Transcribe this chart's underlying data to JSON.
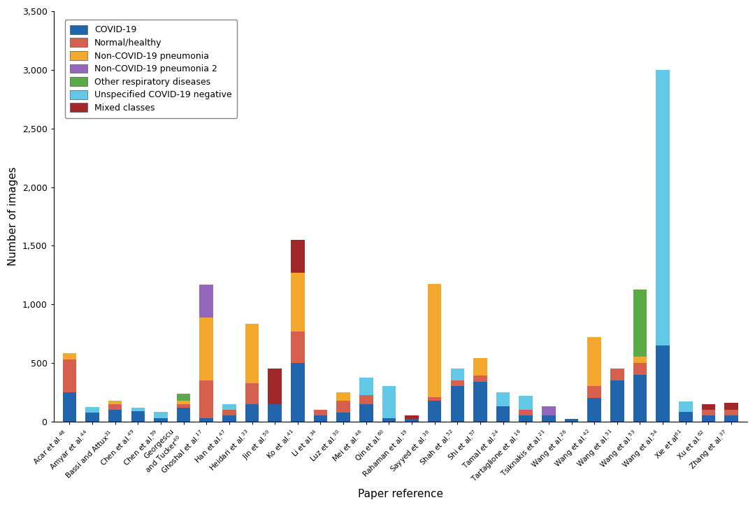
{
  "labels_base": [
    "Acar et al.",
    "Amyar et al.",
    "Bassi and Attux",
    "Chen et al.",
    "Chen et al.",
    "Georgescu\n and Tucker",
    "Ghoshal et al.",
    "Han et al.",
    "Heidari et al.",
    "Jin et al.",
    "Ko et al.",
    "Li et al.",
    "Luz et al.",
    "Mei et al.",
    "Qin et al.",
    "Rahaman et al.",
    "Sayyed et al.",
    "Shah et al.",
    "Shi et al.",
    "Tamal et al.",
    "Tartaglione et al.",
    "Tsiknakis et al.",
    "Wang et al.",
    "Wang et al.",
    "Wang et al.",
    "Wang et al.",
    "Wang et al.",
    "Xie et al",
    "Xu et al.",
    "Zhang et al."
  ],
  "labels_superscript": [
    "48",
    "44",
    "31",
    "49",
    "59",
    "40",
    "17",
    "47",
    "33",
    "50",
    "41",
    "34",
    "30",
    "46",
    "60",
    "19",
    "36",
    "52",
    "57",
    "24",
    "16",
    "21",
    "26",
    "42",
    "51",
    "53",
    "54",
    "61",
    "62",
    "37"
  ],
  "covid19": [
    251,
    75,
    100,
    90,
    30,
    120,
    30,
    50,
    150,
    150,
    500,
    50,
    75,
    150,
    30,
    25,
    180,
    300,
    340,
    130,
    50,
    50,
    25,
    200,
    350,
    400,
    650,
    80,
    50,
    50
  ],
  "normal_healthy": [
    280,
    0,
    50,
    0,
    0,
    30,
    320,
    50,
    175,
    0,
    270,
    50,
    100,
    75,
    0,
    0,
    25,
    50,
    50,
    0,
    50,
    0,
    0,
    100,
    100,
    100,
    0,
    0,
    50,
    50
  ],
  "non_covid_pneu": [
    50,
    0,
    30,
    0,
    0,
    30,
    540,
    0,
    510,
    0,
    500,
    0,
    75,
    0,
    0,
    0,
    970,
    0,
    150,
    0,
    0,
    0,
    0,
    420,
    0,
    55,
    0,
    0,
    0,
    0
  ],
  "non_covid_pneu2": [
    0,
    0,
    0,
    0,
    0,
    0,
    280,
    0,
    0,
    0,
    0,
    0,
    0,
    0,
    0,
    0,
    0,
    0,
    0,
    0,
    0,
    80,
    0,
    0,
    0,
    0,
    0,
    0,
    0,
    0
  ],
  "other_resp": [
    0,
    0,
    0,
    0,
    0,
    60,
    0,
    0,
    0,
    0,
    0,
    0,
    0,
    0,
    0,
    0,
    0,
    0,
    0,
    0,
    0,
    0,
    0,
    0,
    0,
    570,
    0,
    0,
    0,
    0
  ],
  "unspec_neg": [
    0,
    50,
    0,
    30,
    50,
    0,
    0,
    50,
    0,
    0,
    0,
    0,
    0,
    150,
    270,
    0,
    0,
    100,
    0,
    120,
    120,
    0,
    0,
    0,
    0,
    0,
    2350,
    90,
    0,
    0
  ],
  "mixed": [
    0,
    0,
    0,
    0,
    0,
    0,
    0,
    0,
    0,
    300,
    280,
    0,
    0,
    0,
    0,
    30,
    0,
    0,
    0,
    0,
    0,
    0,
    0,
    0,
    0,
    0,
    0,
    0,
    50,
    60
  ],
  "colors": {
    "covid19": "#2166ac",
    "normal_healthy": "#d6604d",
    "non_covid_pneu": "#f4a82e",
    "non_covid_pneu2": "#9467bd",
    "other_resp": "#5aaa45",
    "unspec_neg": "#62c8e5",
    "mixed": "#a0282a"
  },
  "legend_labels": [
    "COVID-19",
    "Normal/healthy",
    "Non-COVID-19 pneumonia",
    "Non-COVID-19 pneumonia 2",
    "Other respiratory diseases",
    "Unspecified COVID-19 negative",
    "Mixed classes"
  ],
  "ylabel": "Number of images",
  "xlabel": "Paper reference",
  "ylim": [
    0,
    3500
  ],
  "yticks": [
    0,
    500,
    1000,
    1500,
    2000,
    2500,
    3000,
    3500
  ]
}
